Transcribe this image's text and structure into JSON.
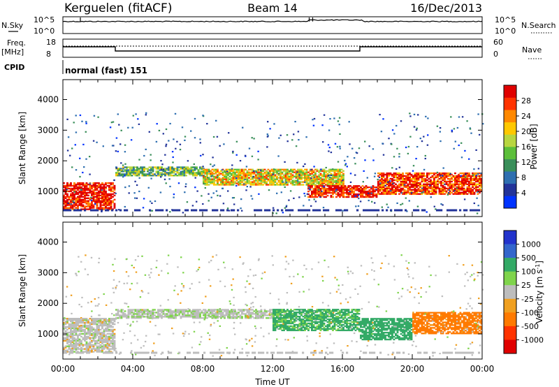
{
  "header": {
    "station": "Kerguelen (fitACF)",
    "beam": "Beam 14",
    "date": "16/Dec/2013"
  },
  "noise_panel": {
    "left_label": "N.Sky",
    "right_label": "N.Search",
    "tick_labels": [
      "10^5",
      "10^0"
    ],
    "nsky_base": 0.72,
    "spike_times": [
      1.0,
      14.1,
      14.3
    ],
    "raised_interval": [
      14.0,
      17.1
    ]
  },
  "freq_panel": {
    "left_label_1": "Freq.",
    "left_label_2": "[MHz]",
    "left_ticks": [
      "18",
      "8"
    ],
    "right_label": "Nave",
    "right_ticks": [
      "60",
      "0"
    ],
    "freq_segments": [
      {
        "start": 0,
        "end": 3.0,
        "level": "high"
      },
      {
        "start": 3.0,
        "end": 17.0,
        "level": "low"
      },
      {
        "start": 17.0,
        "end": 24,
        "level": "high"
      }
    ]
  },
  "cpid": {
    "label": "CPID",
    "value": "normal (fast) 151"
  },
  "chart_data": [
    {
      "type": "heatmap",
      "parameter": "Power",
      "ylabel": "Slant Range [km]",
      "xlabel": "Time UT",
      "xlim": [
        0,
        24
      ],
      "ylim": [
        180,
        4650
      ],
      "yticks": [
        1000,
        2000,
        3000,
        4000
      ],
      "xticks": [
        "00:00",
        "04:00",
        "08:00",
        "12:00",
        "16:00",
        "20:00",
        "00:00"
      ],
      "colorbar": {
        "label": "Power [dB]",
        "ticks": [
          "28",
          "24",
          "20",
          "16",
          "12",
          "8",
          "4"
        ],
        "range": [
          0,
          32
        ],
        "colors": [
          "#0033ff",
          "#223399",
          "#2e6fb0",
          "#3a8f5a",
          "#5cbf3a",
          "#b8d640",
          "#ffc800",
          "#ff8800",
          "#ff3300",
          "#e00000"
        ]
      },
      "echo_bands": [
        {
          "t0": 0.0,
          "t1": 3.0,
          "r0": 400,
          "r1": 1300,
          "value": 30
        },
        {
          "t0": 3.0,
          "t1": 8.0,
          "r0": 1500,
          "r1": 1800,
          "value": 14
        },
        {
          "t0": 8.0,
          "t1": 16.0,
          "r0": 1200,
          "r1": 1700,
          "value": 20
        },
        {
          "t0": 14.0,
          "t1": 18.0,
          "r0": 800,
          "r1": 1200,
          "value": 30
        },
        {
          "t0": 18.0,
          "t1": 24.0,
          "r0": 900,
          "r1": 1600,
          "value": 28
        }
      ]
    },
    {
      "type": "heatmap",
      "parameter": "Velocity",
      "ylabel": "Slant Range [km]",
      "xlabel": "Time UT",
      "xlim": [
        0,
        24
      ],
      "ylim": [
        180,
        4650
      ],
      "yticks": [
        1000,
        2000,
        3000,
        4000
      ],
      "xticks": [
        "00:00",
        "04:00",
        "08:00",
        "12:00",
        "16:00",
        "20:00",
        "00:00"
      ],
      "colorbar": {
        "label": "Velocity [m s-1]",
        "ticks": [
          "1000",
          "500",
          "100",
          "25",
          "-25",
          "-100",
          "-500",
          "-1000"
        ],
        "colors": [
          "#2233cc",
          "#3366cc",
          "#33aa66",
          "#7fd44c",
          "#bdbdbd",
          "#f0a020",
          "#ff7a00",
          "#ff3300",
          "#e00000"
        ]
      },
      "echo_bands": [
        {
          "t0": 0.0,
          "t1": 3.0,
          "r0": 400,
          "r1": 1500,
          "value": 0
        },
        {
          "t0": 3.0,
          "t1": 12.0,
          "r0": 1500,
          "r1": 1800,
          "value": 10
        },
        {
          "t0": 12.0,
          "t1": 17.0,
          "r0": 1100,
          "r1": 1800,
          "value": 150
        },
        {
          "t0": 17.0,
          "t1": 20.0,
          "r0": 800,
          "r1": 1500,
          "value": 300
        },
        {
          "t0": 20.0,
          "t1": 24.0,
          "r0": 1000,
          "r1": 1700,
          "value": -200
        }
      ]
    }
  ]
}
